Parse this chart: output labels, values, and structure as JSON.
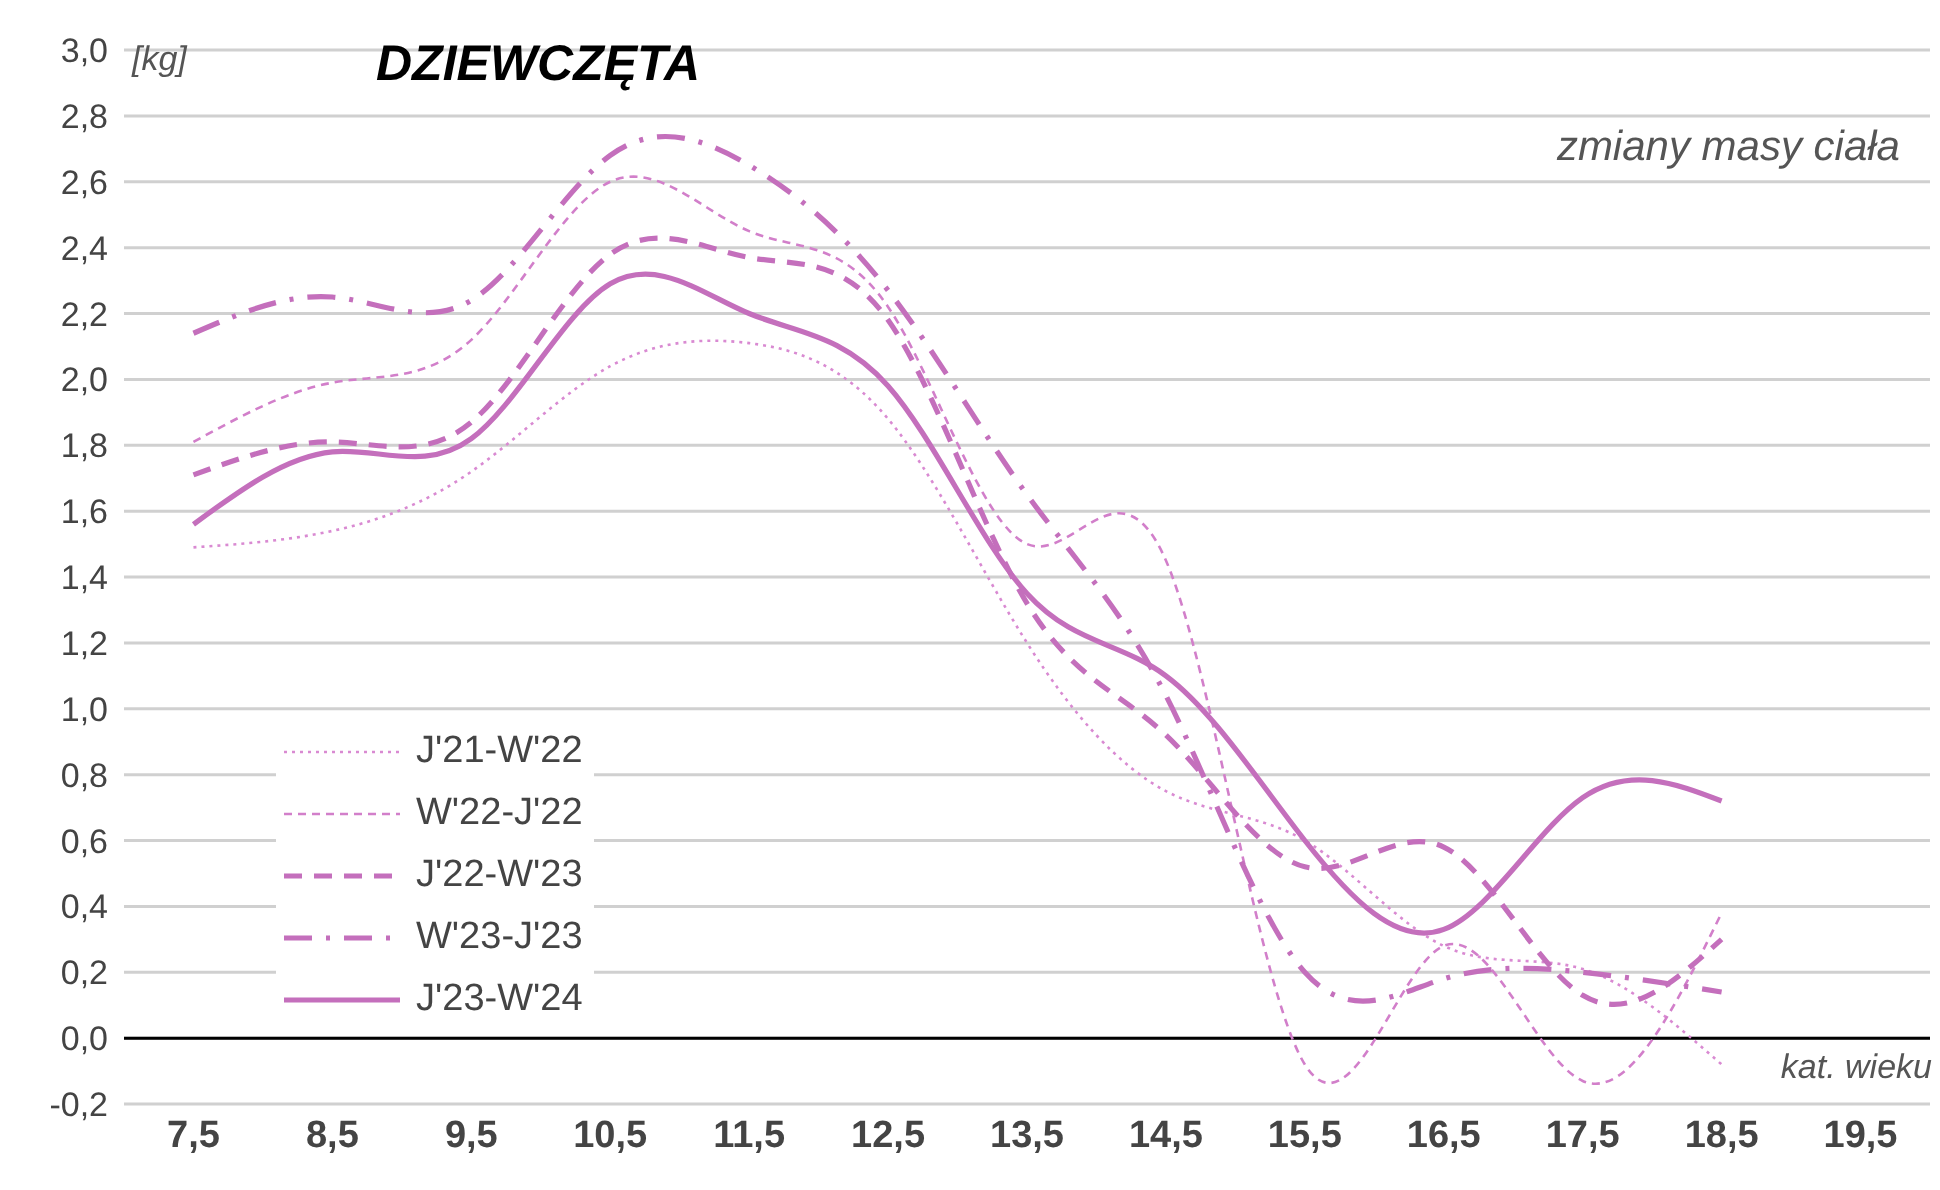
{
  "chart_data": {
    "type": "line",
    "title": "DZIEWCZĘTA",
    "subtitle": "zmiany masy ciała",
    "ylabel": "[kg]",
    "xlabel": "kat. wieku",
    "x": [
      7.5,
      8.5,
      9.5,
      10.5,
      11.5,
      12.5,
      13.5,
      14.5,
      15.5,
      16.5,
      17.5,
      18.5
    ],
    "series": [
      {
        "name": "J'21-W'22",
        "color": "#d98ad2",
        "line_style": "dotted",
        "values": [
          1.49,
          1.54,
          1.72,
          2.04,
          2.11,
          1.88,
          1.2,
          0.75,
          0.6,
          0.28,
          0.21,
          -0.08
        ]
      },
      {
        "name": "W'22-J'22",
        "color": "#d27fca",
        "line_style": "dashed",
        "values": [
          1.81,
          1.99,
          2.12,
          2.6,
          2.45,
          2.22,
          1.5,
          1.45,
          -0.08,
          0.28,
          -0.13,
          0.38
        ]
      },
      {
        "name": "J'22-W'23",
        "color": "#c46fbc",
        "line_style": "dashed",
        "values": [
          1.71,
          1.81,
          1.87,
          2.38,
          2.37,
          2.18,
          1.32,
          0.92,
          0.52,
          0.58,
          0.13,
          0.3
        ]
      },
      {
        "name": "W'23-J'23",
        "color": "#c46fbc",
        "line_style": "dashdot",
        "values": [
          2.14,
          2.25,
          2.24,
          2.68,
          2.65,
          2.27,
          1.65,
          1.04,
          0.2,
          0.18,
          0.2,
          0.14
        ]
      },
      {
        "name": "J'23-W'24",
        "color": "#c46fbc",
        "line_style": "solid",
        "values": [
          1.56,
          1.78,
          1.82,
          2.29,
          2.2,
          1.98,
          1.35,
          1.1,
          0.6,
          0.33,
          0.73,
          0.72
        ]
      }
    ],
    "xlim": [
      7,
      20
    ],
    "xticks": [
      {
        "value": 7.5,
        "label": "7,5"
      },
      {
        "value": 8.5,
        "label": "8,5"
      },
      {
        "value": 9.5,
        "label": "9,5"
      },
      {
        "value": 10.5,
        "label": "10,5"
      },
      {
        "value": 11.5,
        "label": "11,5"
      },
      {
        "value": 12.5,
        "label": "12,5"
      },
      {
        "value": 13.5,
        "label": "13,5"
      },
      {
        "value": 14.5,
        "label": "14,5"
      },
      {
        "value": 15.5,
        "label": "15,5"
      },
      {
        "value": 16.5,
        "label": "16,5"
      },
      {
        "value": 17.5,
        "label": "17,5"
      },
      {
        "value": 18.5,
        "label": "18,5"
      },
      {
        "value": 19.5,
        "label": "19,5"
      }
    ],
    "ylim": [
      -0.2,
      3.0
    ],
    "yticks": [
      {
        "value": -0.2,
        "label": "-0,2"
      },
      {
        "value": 0,
        "label": "0,0"
      },
      {
        "value": 0.2,
        "label": "0,2"
      },
      {
        "value": 0.4,
        "label": "0,4"
      },
      {
        "value": 0.6,
        "label": "0,6"
      },
      {
        "value": 0.8,
        "label": "0,8"
      },
      {
        "value": 1.0,
        "label": "1,0"
      },
      {
        "value": 1.2,
        "label": "1,2"
      },
      {
        "value": 1.4,
        "label": "1,4"
      },
      {
        "value": 1.6,
        "label": "1,6"
      },
      {
        "value": 1.8,
        "label": "1,8"
      },
      {
        "value": 2.0,
        "label": "2,0"
      },
      {
        "value": 2.2,
        "label": "2,2"
      },
      {
        "value": 2.4,
        "label": "2,4"
      },
      {
        "value": 2.6,
        "label": "2,6"
      },
      {
        "value": 2.8,
        "label": "2,8"
      },
      {
        "value": 3.0,
        "label": "3,0"
      }
    ],
    "ref_lines": [
      {
        "axis": "y",
        "value": 0,
        "color": "#000000"
      }
    ],
    "grid": "y",
    "legend": "bottom left",
    "marker": "none"
  }
}
